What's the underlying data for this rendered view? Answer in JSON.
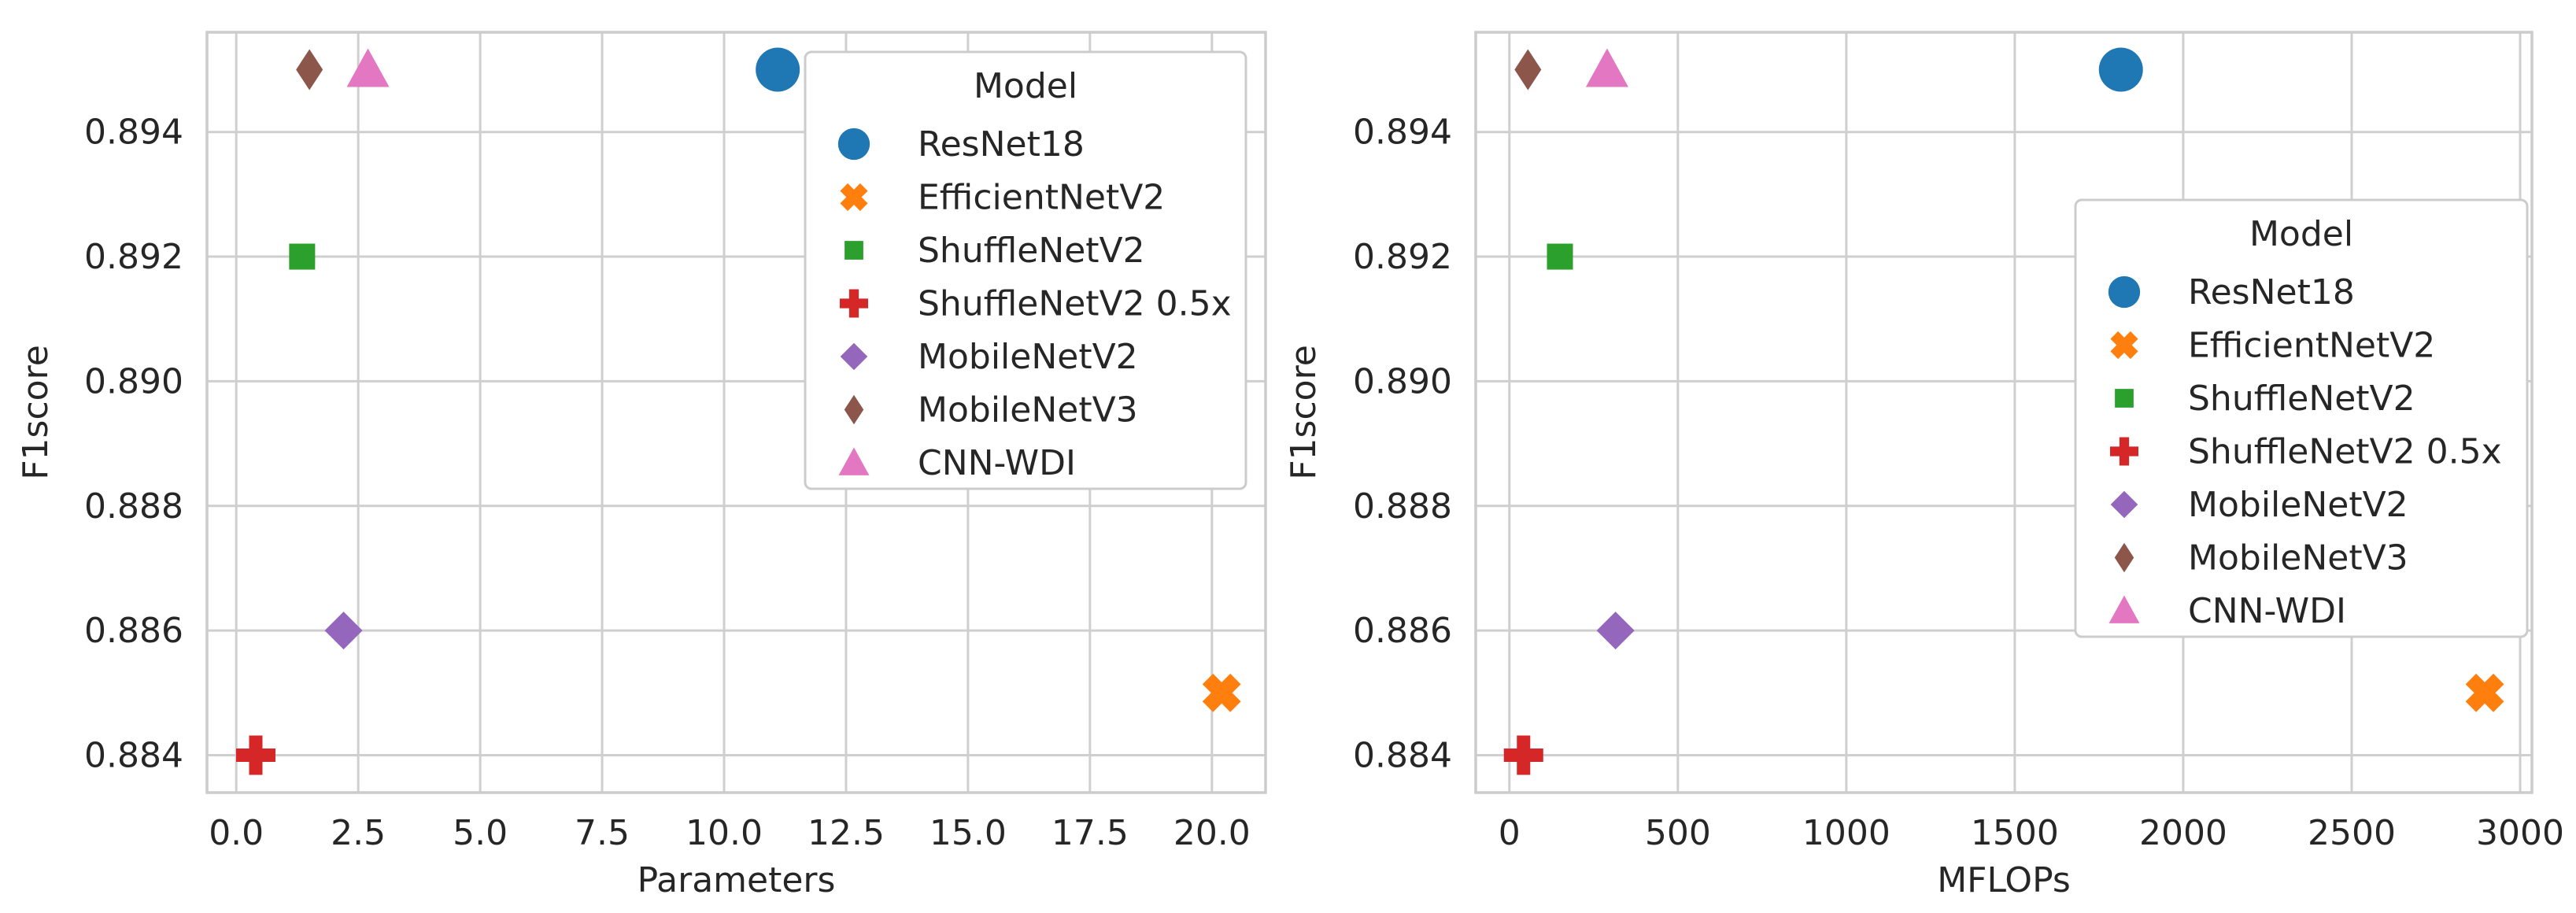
{
  "figure": {
    "background": "#ffffff",
    "grid_color": "#cfcfcf",
    "spine_color": "#cccccc",
    "text_color": "#262626",
    "legend_border_color": "#cccccc",
    "legend_background": "#ffffff"
  },
  "models": [
    {
      "name": "ResNet18",
      "color": "#1f77b4",
      "marker": "circle"
    },
    {
      "name": "EfficientNetV2",
      "color": "#ff7f0e",
      "marker": "x"
    },
    {
      "name": "ShuffleNetV2",
      "color": "#2ca02c",
      "marker": "square"
    },
    {
      "name": "ShuffleNetV2 0.5x",
      "color": "#d62728",
      "marker": "plus"
    },
    {
      "name": "MobileNetV2",
      "color": "#9467bd",
      "marker": "diamond"
    },
    {
      "name": "MobileNetV3",
      "color": "#8c564b",
      "marker": "thin-diamond"
    },
    {
      "name": "CNN-WDI",
      "color": "#e377c2",
      "marker": "triangle"
    }
  ],
  "chart_data": [
    {
      "type": "scatter",
      "title": "",
      "xlabel": "Parameters",
      "ylabel": "F1score",
      "xlim": [
        -0.6,
        21.1
      ],
      "ylim": [
        0.8834,
        0.8956
      ],
      "grid": true,
      "legend_title": "Model",
      "legend_position": "upper right",
      "xticks": {
        "values": [
          0.0,
          2.5,
          5.0,
          7.5,
          10.0,
          12.5,
          15.0,
          17.5,
          20.0
        ],
        "labels": [
          "0.0",
          "2.5",
          "5.0",
          "7.5",
          "10.0",
          "12.5",
          "15.0",
          "17.5",
          "20.0"
        ]
      },
      "yticks": {
        "values": [
          0.884,
          0.886,
          0.888,
          0.89,
          0.892,
          0.894
        ],
        "labels": [
          "0.884",
          "0.886",
          "0.888",
          "0.890",
          "0.892",
          "0.894"
        ]
      },
      "points": [
        {
          "model": "ResNet18",
          "x": 11.1,
          "y": 0.895
        },
        {
          "model": "EfficientNetV2",
          "x": 20.2,
          "y": 0.885
        },
        {
          "model": "ShuffleNetV2",
          "x": 1.35,
          "y": 0.892
        },
        {
          "model": "ShuffleNetV2 0.5x",
          "x": 0.4,
          "y": 0.884
        },
        {
          "model": "MobileNetV2",
          "x": 2.2,
          "y": 0.886
        },
        {
          "model": "MobileNetV3",
          "x": 1.5,
          "y": 0.895
        },
        {
          "model": "CNN-WDI",
          "x": 2.7,
          "y": 0.895
        }
      ]
    },
    {
      "type": "scatter",
      "title": "",
      "xlabel": "MFLOPs",
      "ylabel": "F1score",
      "xlim": [
        -100,
        3035
      ],
      "ylim": [
        0.8834,
        0.8956
      ],
      "grid": true,
      "legend_title": "Model",
      "legend_position": "center right",
      "xticks": {
        "values": [
          0,
          500,
          1000,
          1500,
          2000,
          2500,
          3000
        ],
        "labels": [
          "0",
          "500",
          "1000",
          "1500",
          "2000",
          "2500",
          "3000"
        ]
      },
      "yticks": {
        "values": [
          0.884,
          0.886,
          0.888,
          0.89,
          0.892,
          0.894
        ],
        "labels": [
          "0.884",
          "0.886",
          "0.888",
          "0.890",
          "0.892",
          "0.894"
        ]
      },
      "points": [
        {
          "model": "ResNet18",
          "x": 1815,
          "y": 0.895
        },
        {
          "model": "EfficientNetV2",
          "x": 2895,
          "y": 0.885
        },
        {
          "model": "ShuffleNetV2",
          "x": 150,
          "y": 0.892
        },
        {
          "model": "ShuffleNetV2 0.5x",
          "x": 42,
          "y": 0.884
        },
        {
          "model": "MobileNetV2",
          "x": 315,
          "y": 0.886
        },
        {
          "model": "MobileNetV3",
          "x": 55,
          "y": 0.895
        },
        {
          "model": "CNN-WDI",
          "x": 290,
          "y": 0.895
        }
      ]
    }
  ]
}
